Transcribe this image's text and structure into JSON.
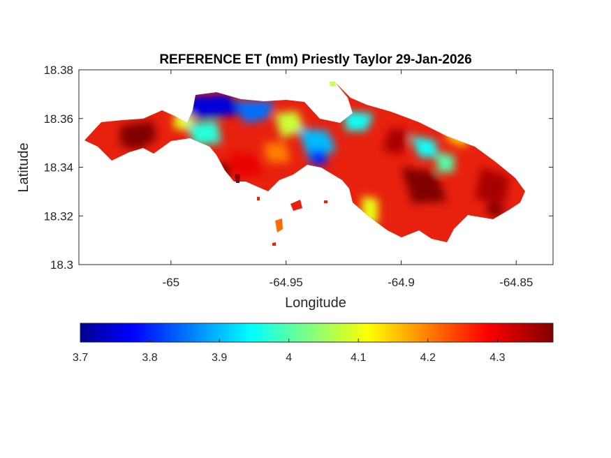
{
  "title": "REFERENCE ET (mm) Priestly Taylor 29-Jan-2026",
  "map": {
    "xlabel": "Longitude",
    "ylabel": "Latitude",
    "xlim": [
      -65.04,
      -64.834
    ],
    "ylim": [
      18.3,
      18.38
    ],
    "x_ticks": [
      {
        "value": -65.0,
        "label": "-65"
      },
      {
        "value": -64.95,
        "label": "-64.95"
      },
      {
        "value": -64.9,
        "label": "-64.9"
      },
      {
        "value": -64.85,
        "label": "-64.85"
      }
    ],
    "y_ticks": [
      {
        "value": 18.3,
        "label": "18.3"
      },
      {
        "value": 18.32,
        "label": "18.32"
      },
      {
        "value": 18.34,
        "label": "18.34"
      },
      {
        "value": 18.36,
        "label": "18.36"
      },
      {
        "value": 18.38,
        "label": "18.38"
      }
    ],
    "box": true,
    "grid": false
  },
  "colorbar": {
    "colormap": "jet",
    "range": [
      3.7,
      4.38
    ],
    "orientation": "horizontal",
    "location": "below",
    "ticks": [
      {
        "value": 3.7,
        "label": "3.7"
      },
      {
        "value": 3.8,
        "label": "3.8"
      },
      {
        "value": 3.9,
        "label": "3.9"
      },
      {
        "value": 4.0,
        "label": "4"
      },
      {
        "value": 4.1,
        "label": "4.1"
      },
      {
        "value": 4.2,
        "label": "4.2"
      },
      {
        "value": 4.3,
        "label": "4.3"
      }
    ]
  },
  "regions": [
    {
      "value": 4.38,
      "shape": [
        [
          -65.022,
          18.357
        ],
        [
          -65.008,
          18.359
        ],
        [
          -65.006,
          18.352
        ],
        [
          -65.014,
          18.347
        ],
        [
          -65.022,
          18.349
        ]
      ]
    },
    {
      "value": 4.1,
      "shape": [
        [
          -64.998,
          18.363
        ],
        [
          -64.99,
          18.361
        ],
        [
          -64.992,
          18.355
        ],
        [
          -64.999,
          18.356
        ]
      ]
    },
    {
      "value": 3.75,
      "shape": [
        [
          -64.997,
          18.369
        ],
        [
          -64.975,
          18.37
        ],
        [
          -64.968,
          18.362
        ],
        [
          -64.985,
          18.36
        ],
        [
          -64.996,
          18.362
        ]
      ]
    },
    {
      "value": 3.85,
      "shape": [
        [
          -64.972,
          18.367
        ],
        [
          -64.955,
          18.367
        ],
        [
          -64.958,
          18.36
        ],
        [
          -64.968,
          18.358
        ]
      ]
    },
    {
      "value": 3.97,
      "shape": [
        [
          -64.993,
          18.358
        ],
        [
          -64.98,
          18.359
        ],
        [
          -64.978,
          18.35
        ],
        [
          -64.99,
          18.349
        ]
      ]
    },
    {
      "value": 4.08,
      "shape": [
        [
          -64.955,
          18.362
        ],
        [
          -64.945,
          18.363
        ],
        [
          -64.942,
          18.355
        ],
        [
          -64.952,
          18.352
        ]
      ]
    },
    {
      "value": 3.9,
      "shape": [
        [
          -64.945,
          18.356
        ],
        [
          -64.932,
          18.355
        ],
        [
          -64.928,
          18.347
        ],
        [
          -64.94,
          18.343
        ]
      ]
    },
    {
      "value": 3.8,
      "shape": [
        [
          -64.94,
          18.347
        ],
        [
          -64.933,
          18.347
        ],
        [
          -64.932,
          18.341
        ],
        [
          -64.939,
          18.341
        ]
      ]
    },
    {
      "value": 4.3,
      "shape": [
        [
          -64.975,
          18.346
        ],
        [
          -64.963,
          18.345
        ],
        [
          -64.96,
          18.337
        ],
        [
          -64.972,
          18.336
        ]
      ]
    },
    {
      "value": 4.38,
      "shape": [
        [
          -64.98,
          18.342
        ],
        [
          -64.974,
          18.341
        ],
        [
          -64.975,
          18.334
        ],
        [
          -64.98,
          18.335
        ]
      ]
    },
    {
      "value": 4.2,
      "shape": [
        [
          -64.96,
          18.35
        ],
        [
          -64.95,
          18.35
        ],
        [
          -64.948,
          18.342
        ],
        [
          -64.958,
          18.342
        ]
      ]
    },
    {
      "value": 3.95,
      "shape": [
        [
          -64.925,
          18.363
        ],
        [
          -64.912,
          18.362
        ],
        [
          -64.915,
          18.355
        ],
        [
          -64.924,
          18.355
        ]
      ]
    },
    {
      "value": 4.35,
      "shape": [
        [
          -64.905,
          18.356
        ],
        [
          -64.896,
          18.355
        ],
        [
          -64.9,
          18.345
        ],
        [
          -64.908,
          18.347
        ]
      ]
    },
    {
      "value": 3.95,
      "shape": [
        [
          -64.896,
          18.353
        ],
        [
          -64.885,
          18.351
        ],
        [
          -64.884,
          18.344
        ],
        [
          -64.892,
          18.344
        ]
      ]
    },
    {
      "value": 4.0,
      "shape": [
        [
          -64.885,
          18.346
        ],
        [
          -64.877,
          18.345
        ],
        [
          -64.877,
          18.338
        ],
        [
          -64.884,
          18.338
        ]
      ]
    },
    {
      "value": 4.38,
      "shape": [
        [
          -64.9,
          18.34
        ],
        [
          -64.885,
          18.338
        ],
        [
          -64.88,
          18.326
        ],
        [
          -64.895,
          18.325
        ]
      ]
    },
    {
      "value": 4.35,
      "shape": [
        [
          -64.865,
          18.34
        ],
        [
          -64.853,
          18.336
        ],
        [
          -64.855,
          18.325
        ],
        [
          -64.868,
          18.327
        ]
      ]
    },
    {
      "value": 4.1,
      "shape": [
        [
          -64.917,
          18.328
        ],
        [
          -64.91,
          18.327
        ],
        [
          -64.91,
          18.317
        ],
        [
          -64.917,
          18.317
        ]
      ]
    },
    {
      "value": 4.15,
      "shape": [
        [
          -64.88,
          18.36
        ],
        [
          -64.87,
          18.356
        ],
        [
          -64.872,
          18.348
        ],
        [
          -64.88,
          18.351
        ]
      ]
    },
    {
      "value": 4.38,
      "shape": [
        [
          -64.862,
          18.326
        ],
        [
          -64.855,
          18.324
        ],
        [
          -64.857,
          18.319
        ],
        [
          -64.863,
          18.321
        ]
      ]
    }
  ]
}
